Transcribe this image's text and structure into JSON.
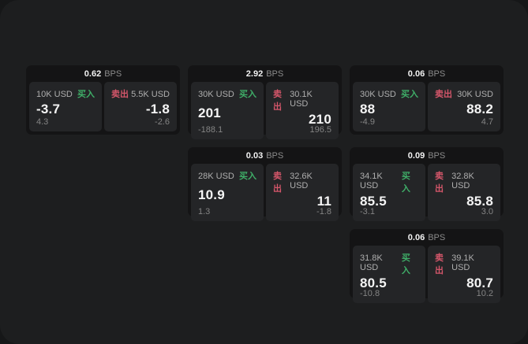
{
  "labels": {
    "buy": "买入",
    "sell": "卖出",
    "bps_unit": "BPS"
  },
  "colors": {
    "buy_green": "#3fae68",
    "sell_red": "#d4566a",
    "card_bg": "#141415",
    "panel_bg": "#242527",
    "screen_bg": "#1d1e1f"
  },
  "cards": [
    {
      "col": 0,
      "row": 0,
      "bps": "0.62",
      "buy": {
        "amount": "10K USD",
        "value": "-3.7",
        "sub": "4.3"
      },
      "sell": {
        "amount": "5.5K USD",
        "value": "-1.8",
        "sub": "-2.6"
      }
    },
    {
      "col": 1,
      "row": 0,
      "bps": "2.92",
      "buy": {
        "amount": "30K USD",
        "value": "201",
        "sub": "-188.1"
      },
      "sell": {
        "amount": "30.1K USD",
        "value": "210",
        "sub": "196.5"
      }
    },
    {
      "col": 2,
      "row": 0,
      "bps": "0.06",
      "buy": {
        "amount": "30K USD",
        "value": "88",
        "sub": "-4.9"
      },
      "sell": {
        "amount": "30K USD",
        "value": "88.2",
        "sub": "4.7"
      }
    },
    {
      "col": 1,
      "row": 1,
      "bps": "0.03",
      "buy": {
        "amount": "28K USD",
        "value": "10.9",
        "sub": "1.3"
      },
      "sell": {
        "amount": "32.6K USD",
        "value": "11",
        "sub": "-1.8"
      }
    },
    {
      "col": 2,
      "row": 1,
      "bps": "0.09",
      "buy": {
        "amount": "34.1K USD",
        "value": "85.5",
        "sub": "-3.1"
      },
      "sell": {
        "amount": "32.8K USD",
        "value": "85.8",
        "sub": "3.0"
      }
    },
    {
      "col": 2,
      "row": 2,
      "bps": "0.06",
      "buy": {
        "amount": "31.8K USD",
        "value": "80.5",
        "sub": "-10.8"
      },
      "sell": {
        "amount": "39.1K USD",
        "value": "80.7",
        "sub": "10.2"
      }
    }
  ]
}
